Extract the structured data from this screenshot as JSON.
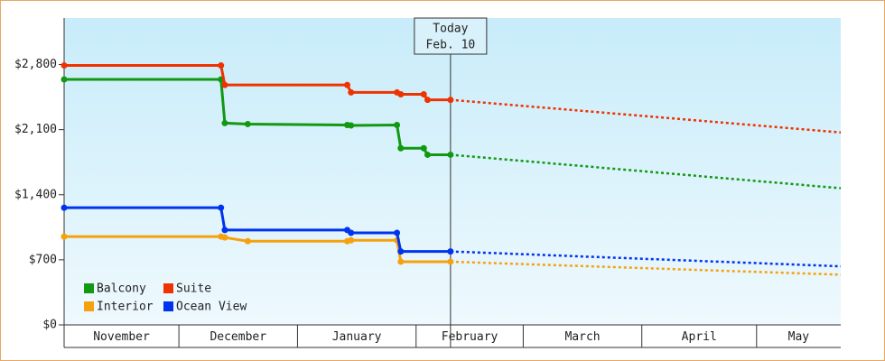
{
  "chart_data": {
    "type": "line",
    "ylim": [
      0,
      3300
    ],
    "yticks": [
      {
        "value": 0,
        "label": "$0"
      },
      {
        "value": 700,
        "label": "$700"
      },
      {
        "value": 1400,
        "label": "$1,400"
      },
      {
        "value": 2100,
        "label": "$2,100"
      },
      {
        "value": 2800,
        "label": "$2,800"
      }
    ],
    "xlim": [
      0,
      203
    ],
    "x_months": [
      {
        "label": "November",
        "start": 0
      },
      {
        "label": "December",
        "start": 30
      },
      {
        "label": "January",
        "start": 61
      },
      {
        "label": "February",
        "start": 92
      },
      {
        "label": "March",
        "start": 120
      },
      {
        "label": "April",
        "start": 151
      },
      {
        "label": "May",
        "start": 181
      }
    ],
    "today": {
      "x": 101,
      "label": "Today",
      "date": "Feb. 10"
    },
    "series": [
      {
        "name": "Balcony",
        "color": "#119911",
        "x": [
          0,
          41,
          42,
          48,
          74,
          75,
          87,
          88,
          94,
          95,
          101
        ],
        "values": [
          2640,
          2640,
          2170,
          2160,
          2150,
          2145,
          2150,
          1900,
          1900,
          1830,
          1830
        ],
        "forecast": {
          "x": [
            101,
            203
          ],
          "values": [
            1830,
            1470
          ]
        }
      },
      {
        "name": "Suite",
        "color": "#ee3300",
        "x": [
          0,
          41,
          42,
          74,
          75,
          87,
          88,
          94,
          95,
          101
        ],
        "values": [
          2790,
          2790,
          2580,
          2580,
          2500,
          2500,
          2480,
          2480,
          2420,
          2420
        ],
        "forecast": {
          "x": [
            101,
            203
          ],
          "values": [
            2420,
            2070
          ]
        }
      },
      {
        "name": "Interior",
        "color": "#f5a10d",
        "x": [
          0,
          41,
          42,
          48,
          74,
          75,
          87,
          88,
          101
        ],
        "values": [
          950,
          950,
          940,
          900,
          900,
          910,
          910,
          680,
          680
        ],
        "forecast": {
          "x": [
            101,
            203
          ],
          "values": [
            680,
            540
          ]
        }
      },
      {
        "name": "Ocean View",
        "color": "#0033ee",
        "x": [
          0,
          41,
          42,
          74,
          75,
          87,
          88,
          101
        ],
        "values": [
          1260,
          1260,
          1020,
          1020,
          990,
          990,
          790,
          790
        ],
        "forecast": {
          "x": [
            101,
            203
          ],
          "values": [
            790,
            630
          ]
        }
      }
    ]
  }
}
